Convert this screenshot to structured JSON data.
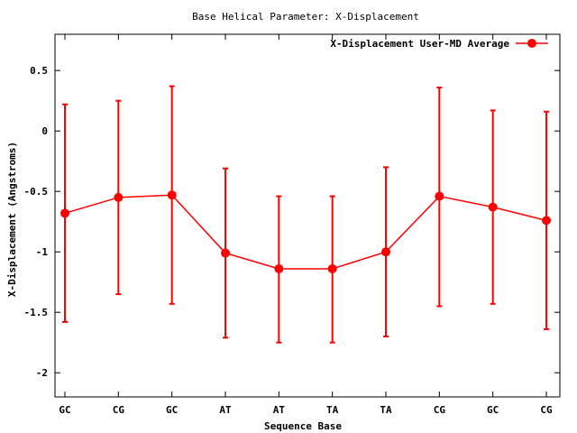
{
  "chart_data": {
    "type": "line",
    "title": "Base  Helical Parameter: X-Displacement",
    "xlabel": "Sequence Base",
    "ylabel": "X-Displacement (Angstroms)",
    "categories": [
      "GC",
      "CG",
      "GC",
      "AT",
      "AT",
      "TA",
      "TA",
      "CG",
      "GC",
      "CG"
    ],
    "ylim": [
      -2.2,
      0.8
    ],
    "yticks": [
      0.5,
      0,
      -0.5,
      -1,
      -1.5,
      -2
    ],
    "ytick_labels": [
      "0.5",
      "0",
      "-0.5",
      "-1",
      "-1.5",
      "-2"
    ],
    "legend_position": "top-right",
    "grid": false,
    "series": [
      {
        "name": "X-Displacement User-MD Average",
        "color": "#ff0000",
        "values": [
          -0.68,
          -0.55,
          -0.53,
          -1.01,
          -1.14,
          -1.14,
          -1.0,
          -0.54,
          -0.63,
          -0.74
        ],
        "error_low": [
          -1.58,
          -1.35,
          -1.43,
          -1.71,
          -1.75,
          -1.75,
          -1.7,
          -1.45,
          -1.43,
          -1.64
        ],
        "error_high": [
          0.22,
          0.25,
          0.37,
          -0.31,
          -0.54,
          -0.54,
          -0.3,
          0.36,
          0.17,
          0.16
        ]
      }
    ]
  }
}
